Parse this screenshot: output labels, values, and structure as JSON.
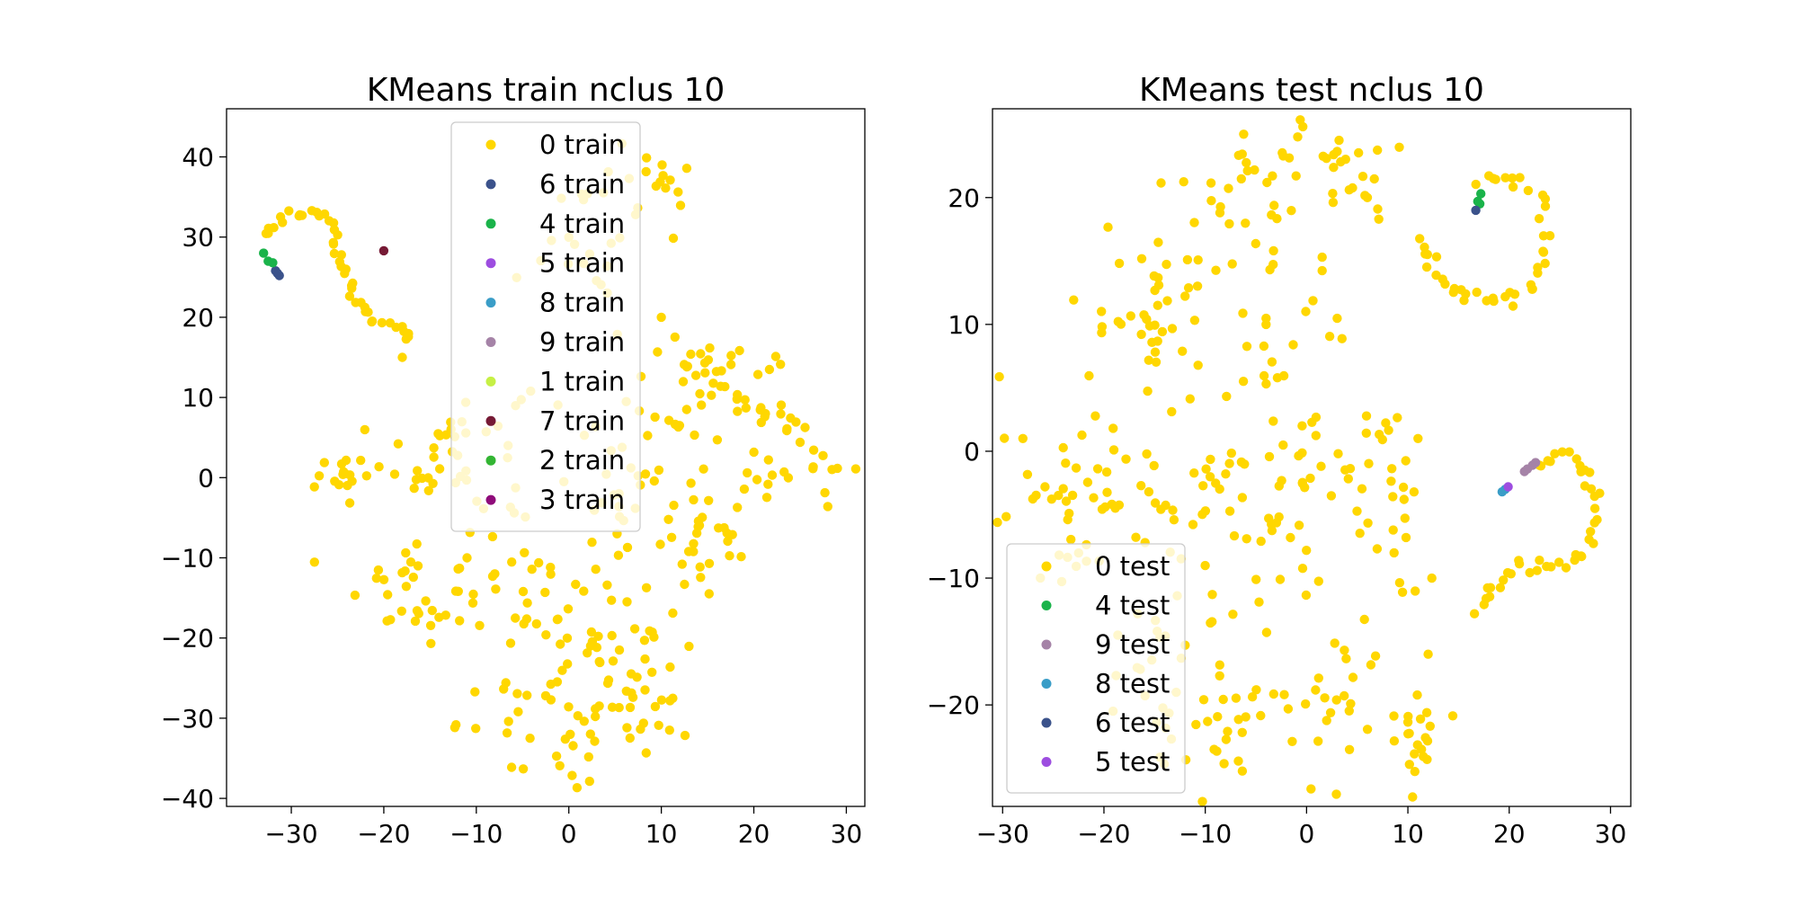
{
  "chart_data": [
    {
      "type": "scatter",
      "title": "KMeans train nclus 10",
      "xlim": [
        -37,
        32
      ],
      "ylim": [
        -41,
        46
      ],
      "xticks": [
        -30,
        -20,
        -10,
        0,
        10,
        20,
        30
      ],
      "yticks": [
        -40,
        -30,
        -20,
        -10,
        0,
        10,
        20,
        30,
        40
      ],
      "xtick_labels": [
        "−30",
        "−20",
        "−10",
        "0",
        "10",
        "20",
        "30"
      ],
      "ytick_labels": [
        "−40",
        "−30",
        "−20",
        "−10",
        "0",
        "10",
        "20",
        "30",
        "40"
      ],
      "grid": false,
      "legend_position": "upper-center",
      "series": [
        {
          "name": "0 train",
          "color": "#ffd700",
          "arc": [
            [
              -33,
              30
            ],
            [
              -31,
              32.5
            ],
            [
              -28,
              33
            ],
            [
              -25.5,
              31.5
            ],
            [
              -25,
              28
            ],
            [
              -24,
              25
            ],
            [
              -23,
              22
            ],
            [
              -21.5,
              20
            ],
            [
              -18,
              18.5
            ],
            [
              -17,
              17
            ]
          ],
          "clusters": [
            {
              "cx": -12,
              "cy": 3,
              "sx": 4,
              "sy": 5,
              "n": 45
            },
            {
              "cx": -24,
              "cy": 0,
              "sx": 2,
              "sy": 1.5,
              "n": 16
            },
            {
              "cx": -17,
              "cy": -12,
              "sx": 3,
              "sy": 4,
              "n": 22
            },
            {
              "cx": -17,
              "cy": -17,
              "sx": 2,
              "sy": 1,
              "n": 10
            },
            {
              "cx": -4,
              "cy": -14,
              "sx": 4,
              "sy": 3,
              "n": 24
            },
            {
              "cx": 4,
              "cy": -22,
              "sx": 5,
              "sy": 3,
              "n": 32
            },
            {
              "cx": 0,
              "cy": -31,
              "sx": 6,
              "sy": 3,
              "n": 42
            },
            {
              "cx": 9,
              "cy": -28,
              "sx": 2,
              "sy": 3,
              "n": 12
            },
            {
              "cx": 8,
              "cy": 0,
              "sx": 5,
              "sy": 6,
              "n": 48
            },
            {
              "cx": 15,
              "cy": -8,
              "sx": 2.5,
              "sy": 4,
              "n": 24
            },
            {
              "cx": 16,
              "cy": 15,
              "sx": 3,
              "sy": 2,
              "n": 20
            },
            {
              "cx": 20,
              "cy": 10,
              "sx": 3,
              "sy": 2,
              "n": 20
            },
            {
              "cx": 27,
              "cy": 3,
              "sx": 2,
              "sy": 2,
              "n": 12
            },
            {
              "cx": 22,
              "cy": 0,
              "sx": 2,
              "sy": 2,
              "n": 10
            },
            {
              "cx": 3,
              "cy": 30,
              "sx": 3,
              "sy": 4,
              "n": 22
            },
            {
              "cx": 9,
              "cy": 38,
              "sx": 2,
              "sy": 3,
              "n": 14
            }
          ],
          "points": [
            [
              10,
              20
            ],
            [
              -18,
              15
            ],
            [
              -11,
              -10
            ],
            [
              -8,
              -12
            ]
          ]
        },
        {
          "name": "6 train",
          "color": "#3b528b",
          "points": [
            [
              -31.5,
              25.5
            ],
            [
              -31.3,
              25.2
            ],
            [
              -31.7,
              25.8
            ]
          ]
        },
        {
          "name": "4 train",
          "color": "#1ab34a",
          "points": [
            [
              -32.5,
              27
            ],
            [
              -32,
              26.8
            ],
            [
              -33,
              28
            ]
          ]
        },
        {
          "name": "5 train",
          "color": "#9d4de0",
          "points": []
        },
        {
          "name": "8 train",
          "color": "#3a9dc7",
          "points": []
        },
        {
          "name": "9 train",
          "color": "#a583a7",
          "points": []
        },
        {
          "name": "1 train",
          "color": "#c6f045",
          "points": []
        },
        {
          "name": "7 train",
          "color": "#761a35",
          "points": [
            [
              -20,
              28.3
            ]
          ]
        },
        {
          "name": "2 train",
          "color": "#33b533",
          "points": []
        },
        {
          "name": "3 train",
          "color": "#8f0b7a",
          "points": []
        }
      ]
    },
    {
      "type": "scatter",
      "title": "KMeans test nclus 10",
      "xlim": [
        -31,
        32
      ],
      "ylim": [
        -28,
        27
      ],
      "xticks": [
        -30,
        -20,
        -10,
        0,
        10,
        20,
        30
      ],
      "yticks": [
        -20,
        -10,
        0,
        10,
        20
      ],
      "xtick_labels": [
        "−30",
        "−20",
        "−10",
        "0",
        "10",
        "20",
        "30"
      ],
      "ytick_labels": [
        "−20",
        "−10",
        "0",
        "10",
        "20"
      ],
      "grid": false,
      "legend_position": "lower-left",
      "series": [
        {
          "name": "0 test",
          "color": "#ffd700",
          "arc": [
            [
              17,
              21
            ],
            [
              20,
              22
            ],
            [
              23,
              20
            ],
            [
              23.5,
              16
            ],
            [
              22.5,
              13
            ],
            [
              20,
              12
            ],
            [
              17,
              12
            ],
            [
              14,
              13
            ],
            [
              12,
              15
            ],
            [
              11,
              17
            ]
          ],
          "arc2": [
            [
              22.5,
              -1
            ],
            [
              25,
              0
            ],
            [
              27.5,
              -1.5
            ],
            [
              28.5,
              -4
            ],
            [
              28,
              -7
            ],
            [
              26,
              -9
            ],
            [
              23,
              -9
            ],
            [
              20,
              -9.5
            ],
            [
              18,
              -11
            ],
            [
              17,
              -13
            ]
          ],
          "clusters": [
            {
              "cx": -22,
              "cy": -3,
              "sx": 5,
              "sy": 4,
              "n": 55
            },
            {
              "cx": -14,
              "cy": 12,
              "sx": 4,
              "sy": 4,
              "n": 40
            },
            {
              "cx": -4,
              "cy": 20,
              "sx": 5,
              "sy": 3,
              "n": 40
            },
            {
              "cx": 3,
              "cy": 23,
              "sx": 3,
              "sy": 2,
              "n": 18
            },
            {
              "cx": -1,
              "cy": 5,
              "sx": 3,
              "sy": 6,
              "n": 35
            },
            {
              "cx": -8,
              "cy": -3,
              "sx": 4,
              "sy": 2,
              "n": 28
            },
            {
              "cx": 8,
              "cy": -4,
              "sx": 2,
              "sy": 4,
              "n": 26
            },
            {
              "cx": -12,
              "cy": -17,
              "sx": 4,
              "sy": 5,
              "n": 38
            },
            {
              "cx": -6,
              "cy": -21,
              "sx": 4,
              "sy": 2,
              "n": 22
            },
            {
              "cx": 3,
              "cy": -21,
              "sx": 3,
              "sy": 3,
              "n": 24
            },
            {
              "cx": 11,
              "cy": -23,
              "sx": 1.5,
              "sy": 1.5,
              "n": 20
            },
            {
              "cx": 6,
              "cy": -1,
              "sx": 1.5,
              "sy": 2,
              "n": 6
            },
            {
              "cx": -2,
              "cy": -8,
              "sx": 2,
              "sy": 2,
              "n": 10
            }
          ],
          "points": [
            [
              -28,
              1
            ],
            [
              6,
              20
            ],
            [
              11,
              1
            ],
            [
              -4,
              10
            ],
            [
              12,
              -16
            ]
          ]
        },
        {
          "name": "4 test",
          "color": "#1ab34a",
          "points": [
            [
              17.2,
              20.3
            ],
            [
              16.9,
              19.7
            ],
            [
              17.1,
              19.5
            ]
          ]
        },
        {
          "name": "9 test",
          "color": "#a583a7",
          "points": [
            [
              21.5,
              -1.6
            ],
            [
              21.8,
              -1.4
            ],
            [
              22.3,
              -1.1
            ],
            [
              22.6,
              -0.9
            ]
          ]
        },
        {
          "name": "8 test",
          "color": "#3a9dc7",
          "points": [
            [
              19.3,
              -3.2
            ],
            [
              19.6,
              -3.0
            ]
          ]
        },
        {
          "name": "6 test",
          "color": "#3b528b",
          "points": [
            [
              16.7,
              19.0
            ]
          ]
        },
        {
          "name": "5 test",
          "color": "#9d4de0",
          "points": [
            [
              19.9,
              -2.8
            ]
          ]
        }
      ]
    }
  ]
}
